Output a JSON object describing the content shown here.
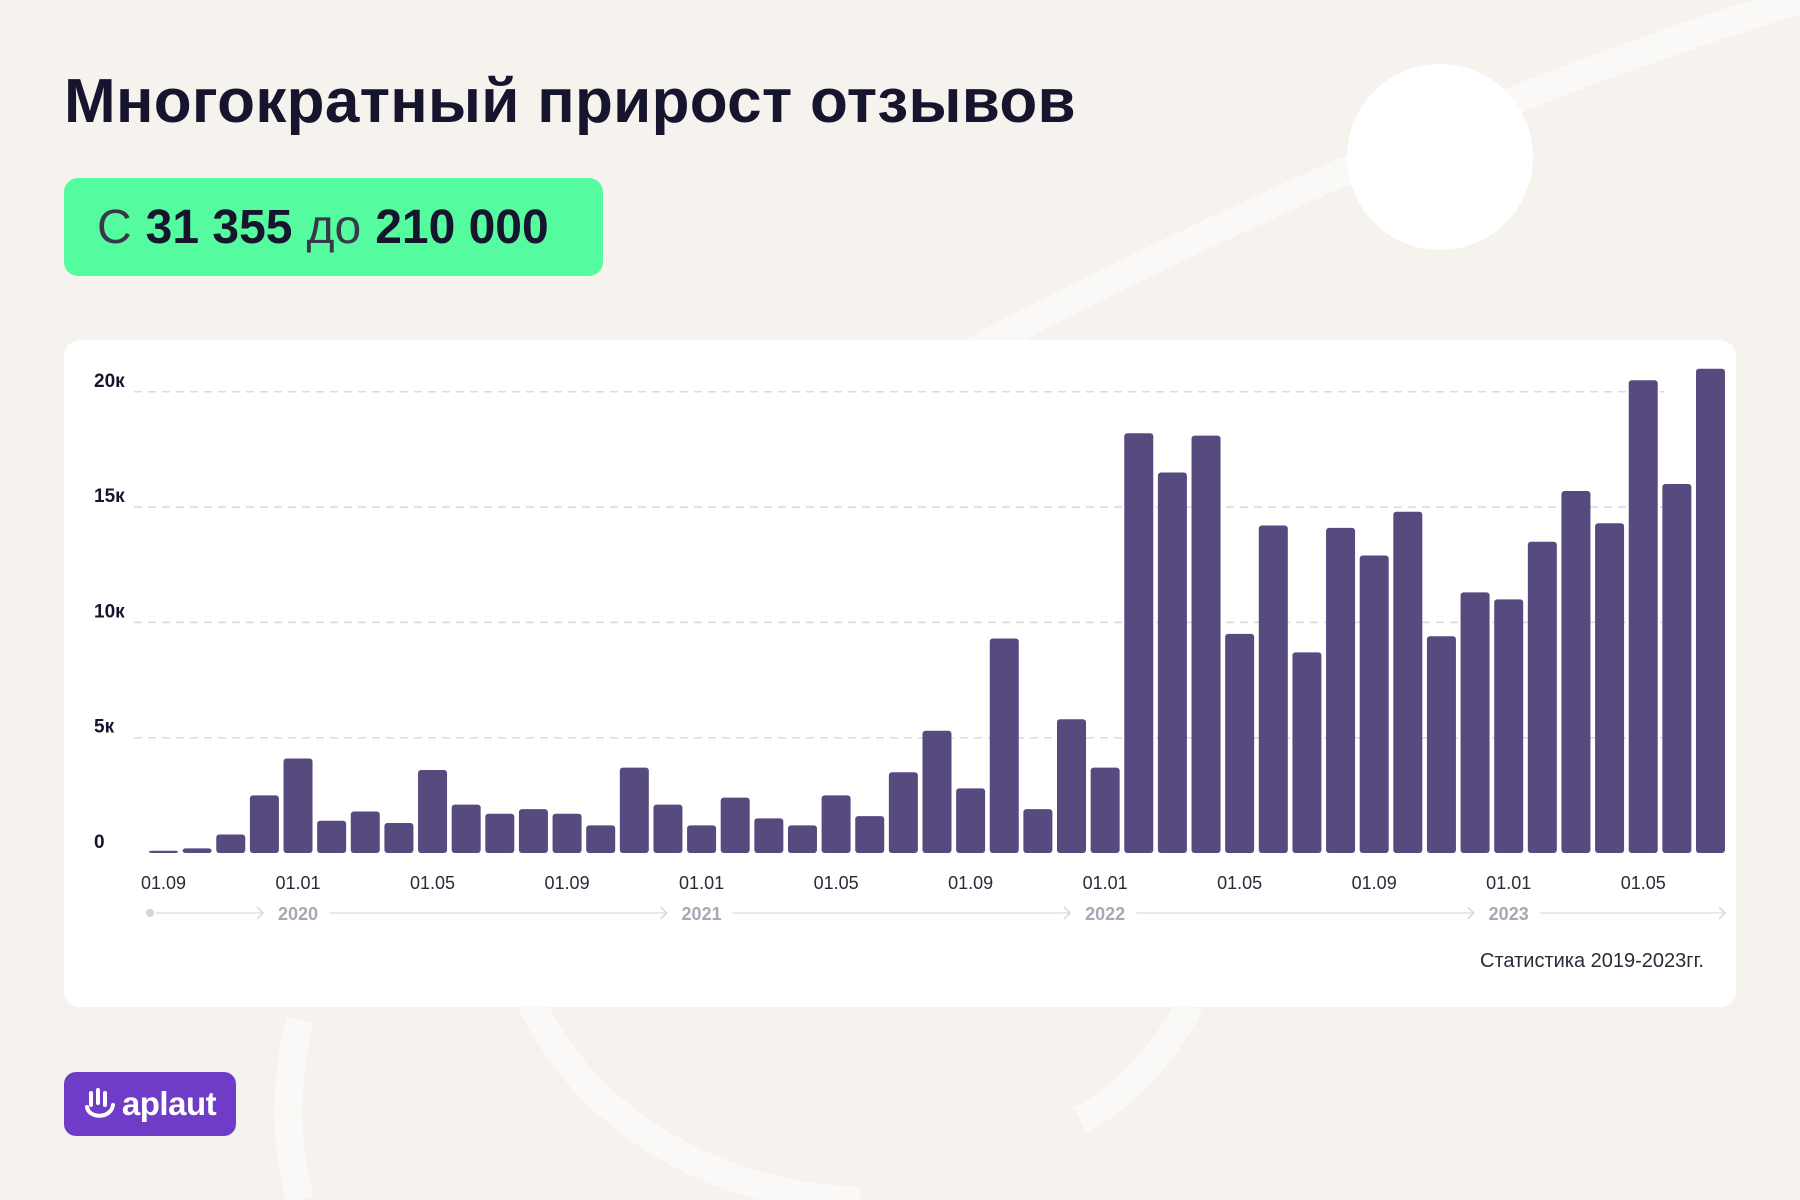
{
  "title": "Многократный прирост отзывов",
  "badge": {
    "from_word": "С",
    "from_value": "31 355",
    "to_word": "до",
    "to_value": "210 000"
  },
  "source": "Статистика 2019-2023гг.",
  "logo": {
    "text": "aplaut"
  },
  "colors": {
    "background": "#f6f2ee",
    "bar": "#564a7e",
    "badge": "#54fb9f",
    "brand": "#6f3cc8",
    "title": "#17142e"
  },
  "chart_data": {
    "type": "bar",
    "title": "",
    "xlabel": "",
    "ylabel": "",
    "ylim": [
      0,
      21000
    ],
    "grid": true,
    "y_ticks": [
      {
        "value": 0,
        "label": "0"
      },
      {
        "value": 5000,
        "label": "5к"
      },
      {
        "value": 10000,
        "label": "10к"
      },
      {
        "value": 15000,
        "label": "15к"
      },
      {
        "value": 20000,
        "label": "20к"
      }
    ],
    "categories": [
      "2019-09",
      "2019-10",
      "2019-11",
      "2019-12",
      "2020-01",
      "2020-02",
      "2020-03",
      "2020-04",
      "2020-05",
      "2020-06",
      "2020-07",
      "2020-08",
      "2020-09",
      "2020-10",
      "2020-11",
      "2020-12",
      "2021-01",
      "2021-02",
      "2021-03",
      "2021-04",
      "2021-05",
      "2021-06",
      "2021-07",
      "2021-08",
      "2021-09",
      "2021-10",
      "2021-11",
      "2021-12",
      "2022-01",
      "2022-02",
      "2022-03",
      "2022-04",
      "2022-05",
      "2022-06",
      "2022-07",
      "2022-08",
      "2022-09",
      "2022-10",
      "2022-11",
      "2022-12",
      "2023-01",
      "2023-02",
      "2023-03",
      "2023-04",
      "2023-05",
      "2023-06",
      "2023-07"
    ],
    "values": [
      100,
      200,
      800,
      2500,
      4100,
      1400,
      1800,
      1300,
      3600,
      2100,
      1700,
      1900,
      1700,
      1200,
      3700,
      2100,
      1200,
      2400,
      1500,
      1200,
      2500,
      1600,
      3500,
      5300,
      2800,
      9300,
      1900,
      5800,
      3700,
      18200,
      16500,
      18100,
      9500,
      14200,
      8700,
      14100,
      12900,
      14800,
      9400,
      11300,
      11000,
      13500,
      15700,
      14300,
      20500,
      16000,
      21000
    ],
    "x_tick_labels": [
      {
        "index": 0,
        "label": "01.09"
      },
      {
        "index": 4,
        "label": "01.01"
      },
      {
        "index": 8,
        "label": "01.05"
      },
      {
        "index": 12,
        "label": "01.09"
      },
      {
        "index": 16,
        "label": "01.01"
      },
      {
        "index": 20,
        "label": "01.05"
      },
      {
        "index": 24,
        "label": "01.09"
      },
      {
        "index": 28,
        "label": "01.01"
      },
      {
        "index": 32,
        "label": "01.05"
      },
      {
        "index": 36,
        "label": "01.09"
      },
      {
        "index": 40,
        "label": "01.01"
      },
      {
        "index": 44,
        "label": "01.05"
      }
    ],
    "year_labels": [
      {
        "index": 4,
        "label": "2020"
      },
      {
        "index": 16,
        "label": "2021"
      },
      {
        "index": 28,
        "label": "2022"
      },
      {
        "index": 40,
        "label": "2023"
      }
    ]
  }
}
